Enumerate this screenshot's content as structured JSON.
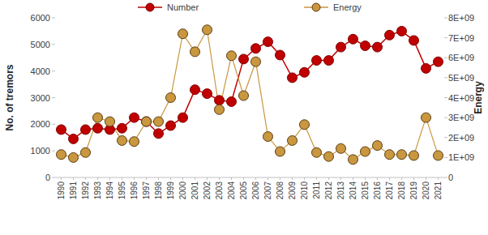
{
  "chart_data": {
    "type": "line",
    "categories": [
      "1990",
      "1991",
      "1992",
      "1993",
      "1994",
      "1995",
      "1996",
      "1997",
      "1998",
      "1999",
      "2000",
      "2001",
      "2002",
      "2003",
      "2004",
      "2005",
      "2006",
      "2007",
      "2008",
      "2009",
      "2010",
      "2011",
      "2012",
      "2013",
      "2014",
      "2015",
      "2016",
      "2017",
      "2018",
      "2019",
      "2020",
      "2021"
    ],
    "series": [
      {
        "name": "Number",
        "color": "#c00000",
        "marker": "circle",
        "line_style": "solid",
        "values": [
          1800,
          1450,
          1800,
          1850,
          1800,
          1850,
          2250,
          2100,
          1650,
          1950,
          2250,
          3300,
          3150,
          2900,
          2850,
          4450,
          4850,
          5100,
          4600,
          3750,
          3950,
          4400,
          4400,
          4900,
          5200,
          4950,
          4900,
          5350,
          5500,
          5150,
          4100,
          4350
        ]
      },
      {
        "name": "Energy",
        "color": "#c9973f",
        "marker": "circle",
        "line_style": "solid",
        "axis": "y2",
        "values": [
          1150000000,
          1000000000,
          1250000000,
          3000000000,
          2800000000,
          1850000000,
          1800000000,
          2800000000,
          2800000000,
          4000000000,
          7200000000,
          6300000000,
          7400000000,
          3400000000,
          6100000000,
          4100000000,
          5800000000,
          2050000000,
          1300000000,
          1850000000,
          2650000000,
          1250000000,
          1050000000,
          1450000000,
          900000000,
          1300000000,
          1600000000,
          1150000000,
          1150000000,
          1100000000,
          3000000000,
          1100000000
        ]
      }
    ],
    "ylabel": "No. of tremors",
    "y2label": "Energy",
    "ylim": [
      0,
      6000
    ],
    "yticks": [
      0,
      1000,
      2000,
      3000,
      4000,
      5000,
      6000
    ],
    "y2lim": [
      0,
      8000000000
    ],
    "y2ticks": [
      0,
      {
        "value": 1000000000,
        "label": "1E+09"
      },
      {
        "value": 2000000000,
        "label": "2E+09"
      },
      {
        "value": 3000000000,
        "label": "3E+09"
      },
      {
        "value": 4000000000,
        "label": "4E+09"
      },
      {
        "value": 5000000000,
        "label": "5E+09"
      },
      {
        "value": 6000000000,
        "label": "6E+09"
      },
      {
        "value": 7000000000,
        "label": "7E+09"
      },
      {
        "value": 8000000000,
        "label": "8E+09"
      }
    ],
    "legend": "top",
    "grid": false
  }
}
